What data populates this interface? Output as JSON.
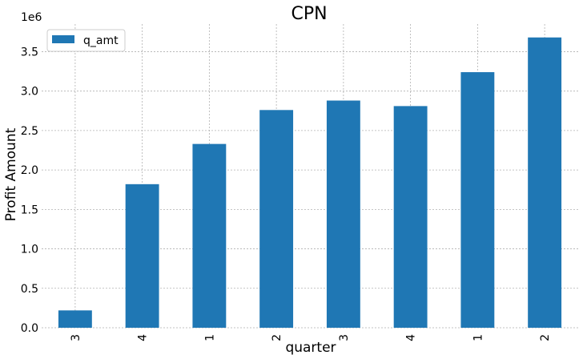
{
  "chart_data": {
    "type": "bar",
    "title": "CPN",
    "xlabel": "quarter",
    "ylabel": "Profit Amount",
    "offset_text": "1e6",
    "categories": [
      "3",
      "4",
      "1",
      "2",
      "3",
      "4",
      "1",
      "2"
    ],
    "series": [
      {
        "name": "q_amt",
        "color": "#1f77b4",
        "values": [
          220000,
          1820000,
          2330000,
          2760000,
          2880000,
          2810000,
          3240000,
          3680000
        ]
      }
    ],
    "ylim": [
      0,
      3850000
    ],
    "yticks": [
      0,
      500000,
      1000000,
      1500000,
      2000000,
      2500000,
      3000000,
      3500000
    ],
    "ytick_labels": [
      "0.0",
      "0.5",
      "1.0",
      "1.5",
      "2.0",
      "2.5",
      "3.0",
      "3.5"
    ],
    "grid": true,
    "legend_position": "top-left"
  }
}
